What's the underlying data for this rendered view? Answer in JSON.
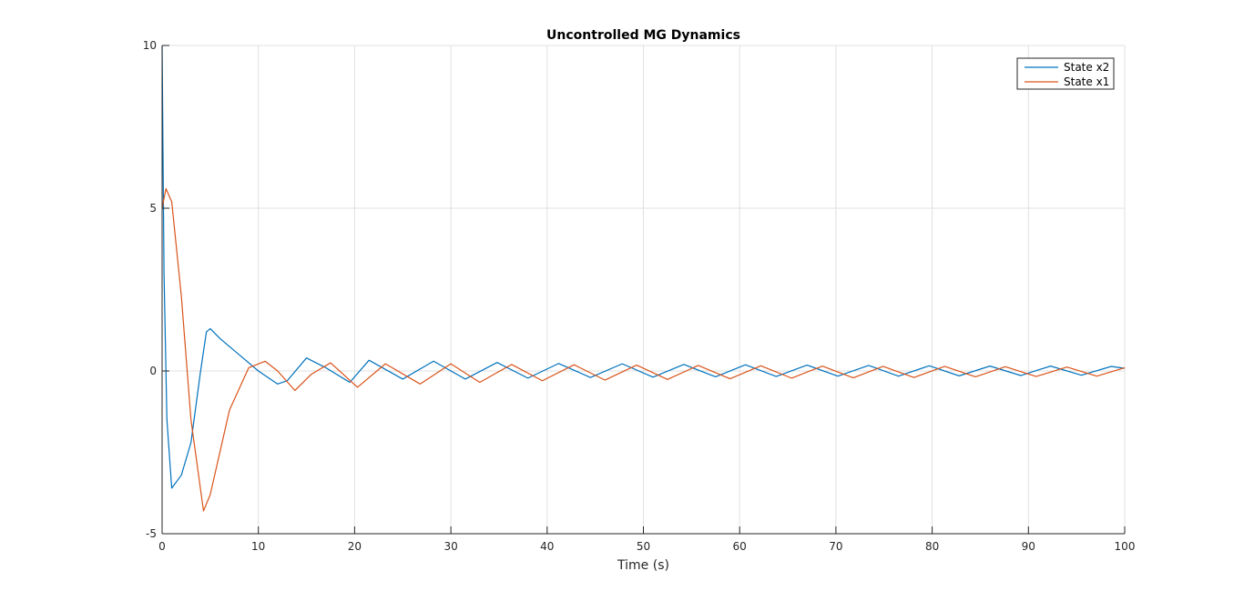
{
  "colors": {
    "background": "#ffffff",
    "axes": "#262626",
    "grid": "#e0e0e0",
    "series_x2": "#0072BD",
    "series_x1": "#D95319"
  },
  "chart_data": {
    "type": "line",
    "title": "Uncontrolled MG Dynamics",
    "xlabel": "Time (s)",
    "ylabel": "",
    "xlim": [
      0,
      100
    ],
    "ylim": [
      -5,
      10
    ],
    "x_ticks": [
      0,
      10,
      20,
      30,
      40,
      50,
      60,
      70,
      80,
      90,
      100
    ],
    "y_ticks": [
      -5,
      0,
      5,
      10
    ],
    "x_tick_labels": [
      "0",
      "10",
      "20",
      "30",
      "40",
      "50",
      "60",
      "70",
      "80",
      "90",
      "100"
    ],
    "y_tick_labels": [
      "-5",
      "0",
      "5",
      "10"
    ],
    "grid": true,
    "legend_position": "top-right",
    "series": [
      {
        "name": "State x2",
        "color": "#0072BD",
        "x": [
          0,
          0.2,
          0.5,
          1,
          2,
          3,
          4,
          4.6,
          5,
          6,
          8,
          10,
          12,
          13,
          15,
          17,
          19.5,
          21.5,
          25,
          28.2,
          31.5,
          34.8,
          38,
          41.2,
          44.5,
          47.8,
          51,
          54.2,
          57.5,
          60.6,
          63.8,
          67,
          70.2,
          73.4,
          76.5,
          79.7,
          82.8,
          86,
          89.2,
          92.3,
          95.5,
          98.6,
          100
        ],
        "y": [
          10,
          3,
          -1.5,
          -3.6,
          -3.2,
          -2.2,
          0,
          1.2,
          1.3,
          1.0,
          0.5,
          0,
          -0.4,
          -0.3,
          0.4,
          0.1,
          -0.35,
          0.33,
          -0.25,
          0.3,
          -0.25,
          0.26,
          -0.22,
          0.23,
          -0.2,
          0.22,
          -0.19,
          0.2,
          -0.18,
          0.19,
          -0.17,
          0.18,
          -0.16,
          0.17,
          -0.16,
          0.16,
          -0.15,
          0.15,
          -0.14,
          0.15,
          -0.13,
          0.14,
          0.08
        ]
      },
      {
        "name": "State x1",
        "color": "#D95319",
        "x": [
          0,
          0.4,
          1,
          2,
          3,
          4.3,
          5,
          7,
          9,
          10.7,
          12,
          13.8,
          15.5,
          17.5,
          20.3,
          23.2,
          26.8,
          30,
          33,
          36.3,
          39.5,
          42.8,
          46,
          49.3,
          52.5,
          55.7,
          59,
          62.2,
          65.4,
          68.6,
          71.8,
          74.9,
          78.1,
          81.3,
          84.5,
          87.6,
          90.8,
          94,
          97.1,
          100
        ],
        "y": [
          5,
          5.6,
          5.2,
          2.3,
          -1.5,
          -4.3,
          -3.8,
          -1.2,
          0.1,
          0.3,
          0,
          -0.6,
          -0.1,
          0.25,
          -0.5,
          0.22,
          -0.4,
          0.22,
          -0.35,
          0.2,
          -0.3,
          0.19,
          -0.28,
          0.18,
          -0.26,
          0.17,
          -0.24,
          0.16,
          -0.22,
          0.15,
          -0.21,
          0.14,
          -0.2,
          0.14,
          -0.18,
          0.13,
          -0.17,
          0.12,
          -0.16,
          0.1
        ]
      }
    ]
  }
}
